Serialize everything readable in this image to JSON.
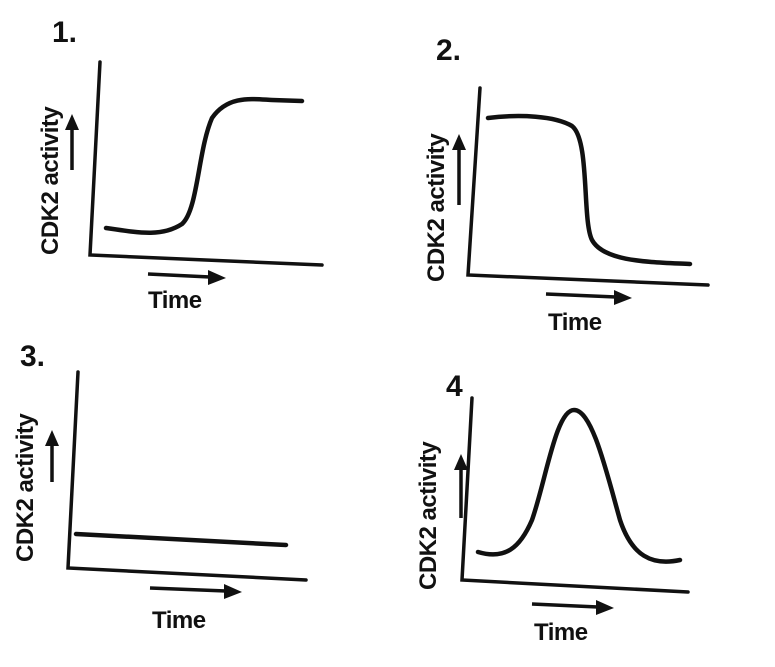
{
  "figure": {
    "panels": [
      {
        "number": "1.",
        "ylabel": "CDK2 activity",
        "xlabel": "Time",
        "trend": "low then rises sigmoidally to a high plateau"
      },
      {
        "number": "2.",
        "ylabel": "CDK2 activity",
        "xlabel": "Time",
        "trend": "high then drops sharply to a low plateau"
      },
      {
        "number": "3.",
        "ylabel": "CDK2 activity",
        "xlabel": "Time",
        "trend": "constant low level"
      },
      {
        "number": "4",
        "ylabel": "CDK2 activity",
        "xlabel": "Time",
        "trend": "low, transient peak, then low again"
      }
    ],
    "colors": {
      "ink": "#111111",
      "background": "#ffffff"
    }
  }
}
